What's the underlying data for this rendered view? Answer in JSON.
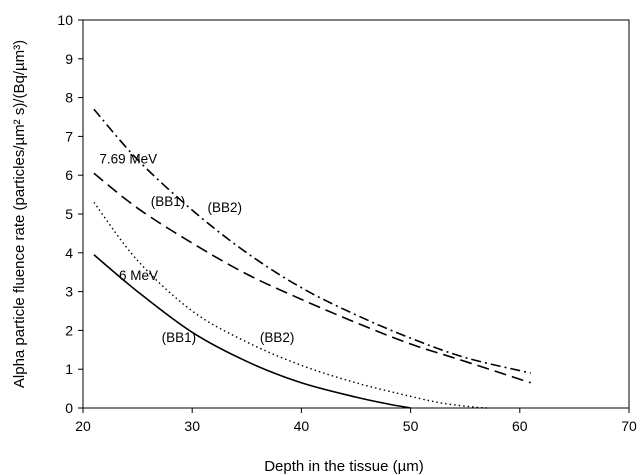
{
  "chart_data": {
    "type": "line",
    "xlabel": "Depth in the tissue (µm)",
    "ylabel": "Alpha particle fluence rate (particles/µm² s)/(Bq/µm³)",
    "xlim": [
      20,
      70
    ],
    "ylim": [
      0,
      10
    ],
    "xticks": [
      20,
      30,
      40,
      50,
      60,
      70
    ],
    "yticks": [
      0,
      1,
      2,
      3,
      4,
      5,
      6,
      7,
      8,
      9,
      10
    ],
    "grid": false,
    "legend": "none",
    "series": [
      {
        "style": "dash-dot",
        "x": [
          21,
          25,
          30,
          35,
          40,
          45,
          50,
          55,
          61
        ],
        "y": [
          7.7,
          6.4,
          5.1,
          4.0,
          3.1,
          2.4,
          1.8,
          1.3,
          0.9
        ]
      },
      {
        "style": "dashed",
        "x": [
          21,
          25,
          30,
          35,
          40,
          45,
          50,
          55,
          61
        ],
        "y": [
          6.05,
          5.15,
          4.25,
          3.45,
          2.8,
          2.2,
          1.65,
          1.2,
          0.65
        ]
      },
      {
        "style": "dotted",
        "x": [
          21,
          25,
          30,
          35,
          40,
          45,
          50,
          53,
          56,
          57
        ],
        "y": [
          5.3,
          3.8,
          2.5,
          1.7,
          1.1,
          0.65,
          0.3,
          0.12,
          0.02,
          0.0
        ]
      },
      {
        "style": "solid",
        "x": [
          21,
          25,
          30,
          35,
          40,
          45,
          48,
          50
        ],
        "y": [
          3.95,
          3.0,
          1.95,
          1.2,
          0.65,
          0.28,
          0.1,
          0.0
        ]
      }
    ],
    "annotations": [
      {
        "text": "7.69 MeV",
        "x": 21.5,
        "y": 6.3
      },
      {
        "text": "(BB1)",
        "x": 26.2,
        "y": 5.2
      },
      {
        "text": "(BB2)",
        "x": 31.4,
        "y": 5.05
      },
      {
        "text": "6 MeV",
        "x": 23.3,
        "y": 3.3
      },
      {
        "text": "(BB1)",
        "x": 27.2,
        "y": 1.7
      },
      {
        "text": "(BB2)",
        "x": 36.2,
        "y": 1.7
      }
    ]
  }
}
